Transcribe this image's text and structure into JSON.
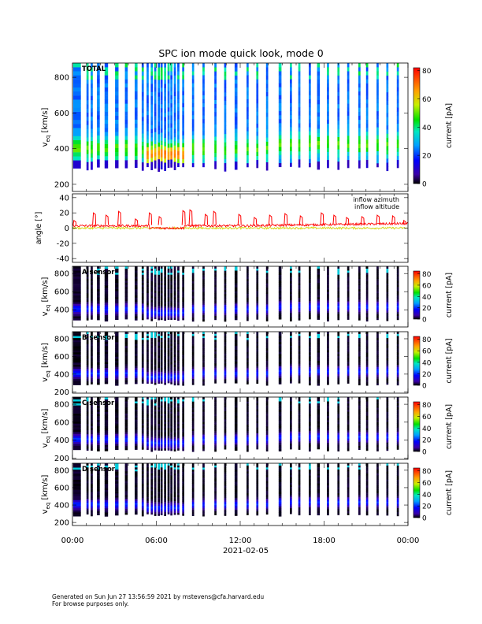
{
  "chart_data": {
    "type": "heatmap",
    "title": "SPC ion mode quick look, mode 0",
    "xlabel": "2021-02-05",
    "x_range_hours": [
      0,
      24
    ],
    "x_ticks": [
      "00:00",
      "06:00",
      "12:00",
      "18:00",
      "00:00"
    ],
    "x_tick_hours": [
      0,
      6,
      12,
      18,
      24
    ],
    "panels": [
      {
        "name": "TOTAL",
        "ylabel_main": "v",
        "ylabel_sub": "eq",
        "ylabel_unit": "[km/s]",
        "ylim": [
          160,
          880
        ],
        "yticks": [
          200,
          400,
          600,
          800
        ],
        "colorbar_label": "current [pA]",
        "colorbar_range": [
          0,
          82
        ],
        "colorbar_ticks": [
          0,
          20,
          40,
          60,
          80
        ],
        "core_speed_kms": 400,
        "style": "total"
      },
      {
        "name": "",
        "type": "line",
        "ylabel": "angle [°]",
        "ylim": [
          -45,
          45
        ],
        "yticks": [
          -40,
          -20,
          0,
          20,
          40
        ],
        "series": [
          {
            "name": "inflow azimuth",
            "color": "#ff0000",
            "typical_deg": 3,
            "spike_range_deg": [
              10,
              24
            ]
          },
          {
            "name": "inflow altitude",
            "color": "#d8d800",
            "typical_deg": 0
          }
        ]
      },
      {
        "name": "A sensor",
        "ylabel_main": "v",
        "ylabel_sub": "eq",
        "ylabel_unit": "[km/s]",
        "ylim": [
          210,
          880
        ],
        "yticks": [
          400,
          600,
          800
        ],
        "colorbar_label": "current [pA]",
        "colorbar_range": [
          0,
          85
        ],
        "colorbar_ticks": [
          0,
          20,
          40,
          60,
          80
        ],
        "core_speed_kms": 410,
        "style": "sensor"
      },
      {
        "name": "B sensor",
        "ylabel_main": "v",
        "ylabel_sub": "eq",
        "ylabel_unit": "[km/s]",
        "ylim": [
          185,
          880
        ],
        "yticks": [
          200,
          400,
          600,
          800
        ],
        "colorbar_label": "current [pA]",
        "colorbar_range": [
          0,
          85
        ],
        "colorbar_ticks": [
          0,
          20,
          40,
          60,
          80
        ],
        "core_speed_kms": 410,
        "style": "sensor"
      },
      {
        "name": "C sensor",
        "ylabel_main": "v",
        "ylabel_sub": "eq",
        "ylabel_unit": "[km/s]",
        "ylim": [
          185,
          880
        ],
        "yticks": [
          200,
          400,
          600,
          800
        ],
        "colorbar_label": "current [pA]",
        "colorbar_range": [
          0,
          85
        ],
        "colorbar_ticks": [
          0,
          20,
          40,
          60,
          80
        ],
        "core_speed_kms": 410,
        "style": "sensor"
      },
      {
        "name": "D sensor",
        "ylabel_main": "v",
        "ylabel_sub": "eq",
        "ylabel_unit": "[km/s]",
        "ylim": [
          165,
          880
        ],
        "yticks": [
          200,
          400,
          600,
          800
        ],
        "colorbar_label": "current [pA]",
        "colorbar_range": [
          0,
          85
        ],
        "colorbar_ticks": [
          0,
          20,
          40,
          60,
          80
        ],
        "core_speed_kms": 410,
        "style": "sensor"
      }
    ],
    "data_segments_hours": [
      [
        0.05,
        0.6
      ],
      [
        1.0,
        1.15
      ],
      [
        1.3,
        1.45
      ],
      [
        1.75,
        1.95
      ],
      [
        2.3,
        2.55
      ],
      [
        3.05,
        3.3
      ],
      [
        3.75,
        3.95
      ],
      [
        4.45,
        4.65
      ],
      [
        4.95,
        5.1
      ],
      [
        5.3,
        5.45
      ],
      [
        5.6,
        5.75
      ],
      [
        5.85,
        6.0
      ],
      [
        6.1,
        6.25
      ],
      [
        6.3,
        6.45
      ],
      [
        6.55,
        6.7
      ],
      [
        6.8,
        6.95
      ],
      [
        7.0,
        7.15
      ],
      [
        7.25,
        7.4
      ],
      [
        7.5,
        7.65
      ],
      [
        7.85,
        8.0
      ],
      [
        8.55,
        8.7
      ],
      [
        9.3,
        9.45
      ],
      [
        10.15,
        10.3
      ],
      [
        10.85,
        11.0
      ],
      [
        11.6,
        11.8
      ],
      [
        12.45,
        12.6
      ],
      [
        13.15,
        13.3
      ],
      [
        13.85,
        14.0
      ],
      [
        14.75,
        14.95
      ],
      [
        15.55,
        15.7
      ],
      [
        16.15,
        16.3
      ],
      [
        16.9,
        17.05
      ],
      [
        17.5,
        17.7
      ],
      [
        18.2,
        18.35
      ],
      [
        18.95,
        19.1
      ],
      [
        19.65,
        19.8
      ],
      [
        20.45,
        20.6
      ],
      [
        21.0,
        21.15
      ],
      [
        21.75,
        21.9
      ],
      [
        22.45,
        22.6
      ],
      [
        23.2,
        23.35
      ]
    ],
    "azimuth_spikes": [
      {
        "hour": 0.1,
        "value": 10
      },
      {
        "hour": 1.5,
        "value": 20
      },
      {
        "hour": 2.4,
        "value": 17
      },
      {
        "hour": 3.3,
        "value": 22
      },
      {
        "hour": 4.5,
        "value": 12
      },
      {
        "hour": 5.5,
        "value": 20
      },
      {
        "hour": 6.2,
        "value": 15
      },
      {
        "hour": 7.9,
        "value": 23
      },
      {
        "hour": 8.4,
        "value": 24
      },
      {
        "hour": 9.5,
        "value": 18
      },
      {
        "hour": 10.1,
        "value": 22
      },
      {
        "hour": 11.9,
        "value": 18
      },
      {
        "hour": 13.0,
        "value": 14
      },
      {
        "hour": 14.1,
        "value": 17
      },
      {
        "hour": 15.2,
        "value": 19
      },
      {
        "hour": 16.3,
        "value": 16
      },
      {
        "hour": 17.8,
        "value": 20
      },
      {
        "hour": 18.7,
        "value": 17
      },
      {
        "hour": 19.6,
        "value": 14
      },
      {
        "hour": 20.7,
        "value": 15
      },
      {
        "hour": 21.8,
        "value": 17
      },
      {
        "hour": 22.9,
        "value": 16
      },
      {
        "hour": 23.7,
        "value": 10
      }
    ]
  },
  "footer": {
    "line1": "Generated on Sun Jun 27 13:56:59 2021 by mstevens@cfa.harvard.edu",
    "line2": "For browse purposes only."
  }
}
